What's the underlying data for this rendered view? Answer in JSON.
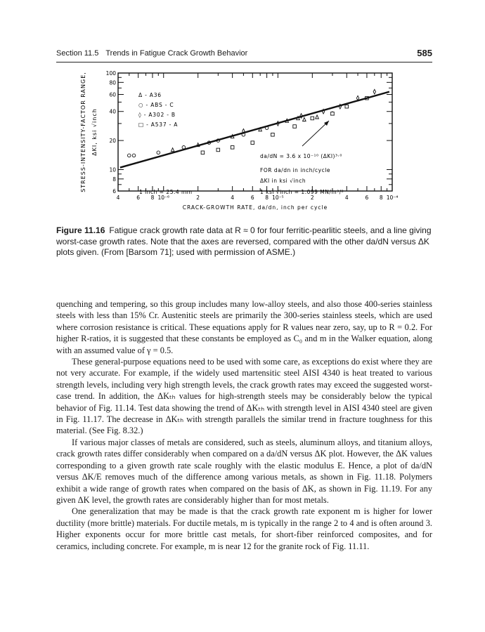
{
  "header": {
    "section": "Section 11.5",
    "title": "Trends in Fatigue Crack Growth Behavior",
    "page_number": "585"
  },
  "figure": {
    "label": "Figure 11.16",
    "caption": "Fatigue crack growth rate data at R ≈ 0 for four ferritic-pearlitic steels, and a line giving worst-case growth rates. Note that the axes are reversed, compared with the other da/dN versus ΔK plots given. (From [Barsom 71]; used with permission of ASME.)"
  },
  "chart_data": {
    "type": "scatter",
    "xlabel": "CRACK-GROWTH RATE, da/dn, inch per cycle",
    "ylabel_line1": "STRESS-INTENSITY-FACTOR RANGE,",
    "ylabel_line2": "ΔKI, ksi √inch",
    "x_scale": "log",
    "y_scale": "log",
    "xlim": [
      4e-07,
      0.0001
    ],
    "ylim": [
      6,
      100
    ],
    "grid": false,
    "legend_position": "top-left",
    "x_ticks": [
      {
        "value": 4e-07,
        "label": "4"
      },
      {
        "value": 6e-07,
        "label": "6"
      },
      {
        "value": 8e-07,
        "label": "8"
      },
      {
        "value": 1e-06,
        "label": "10⁻⁶"
      },
      {
        "value": 2e-06,
        "label": "2"
      },
      {
        "value": 4e-06,
        "label": "4"
      },
      {
        "value": 6e-06,
        "label": "6"
      },
      {
        "value": 8e-06,
        "label": "8"
      },
      {
        "value": 1e-05,
        "label": "10⁻⁵"
      },
      {
        "value": 2e-05,
        "label": "2"
      },
      {
        "value": 4e-05,
        "label": "4"
      },
      {
        "value": 6e-05,
        "label": "6"
      },
      {
        "value": 8e-05,
        "label": "8"
      },
      {
        "value": 0.0001,
        "label": "10⁻⁴"
      }
    ],
    "y_ticks": [
      {
        "value": 100,
        "label": "100"
      },
      {
        "value": 80,
        "label": "80"
      },
      {
        "value": 60,
        "label": "60"
      },
      {
        "value": 40,
        "label": "40"
      },
      {
        "value": 20,
        "label": "20"
      },
      {
        "value": 10,
        "label": "10"
      },
      {
        "value": 8,
        "label": "8"
      },
      {
        "value": 6,
        "label": "6"
      }
    ],
    "series": [
      {
        "name": "A36",
        "marker": "triangle",
        "x": [
          1.2e-06,
          2e-06,
          4e-06,
          7e-06,
          1.2e-05,
          1.5e-05,
          1.7e-05,
          2.2e-05,
          3e-05
        ],
        "y": [
          16,
          18,
          22,
          26,
          32,
          34,
          33,
          35,
          38
        ]
      },
      {
        "name": "ABS-C",
        "marker": "circle",
        "x": [
          5e-07,
          5.5e-07,
          9e-07,
          1.5e-06,
          2.5e-06,
          3e-06,
          5e-06,
          8e-06
        ],
        "y": [
          14,
          14,
          15,
          17,
          19,
          20,
          23,
          27
        ]
      },
      {
        "name": "A302-B",
        "marker": "diamond",
        "x": [
          5e-06,
          1e-05,
          1.6e-05,
          2.5e-05,
          3.5e-05,
          5e-05,
          7e-05
        ],
        "y": [
          25,
          30,
          36,
          40,
          45,
          55,
          64
        ]
      },
      {
        "name": "A537-A",
        "marker": "square",
        "x": [
          2.2e-06,
          3e-06,
          4e-06,
          6e-06,
          9e-06,
          1.4e-05,
          2e-05,
          3e-05,
          4e-05,
          6e-05
        ],
        "y": [
          15,
          16,
          17,
          19,
          23,
          28,
          34,
          38,
          45,
          55
        ]
      }
    ],
    "worst_case_line": {
      "coefficient": 3.6e-10,
      "exponent": 3.0,
      "y_range": [
        10.5,
        64
      ]
    },
    "legend": [
      "Δ - A36",
      "○ - ABS - C",
      "◊ - A302 - B",
      "□ - A537 - A"
    ],
    "annotations": {
      "equation": "da/dN = 3.6 x 10⁻¹⁰ (ΔKI)³·⁰",
      "units1": "FOR da/dn in inch/cycle",
      "units2": "ΔKI in ksi √inch",
      "conversion": "1 ksi √inch = 1.099 MN/m³/²",
      "inch": "1 inch = 25.4 mm"
    }
  },
  "body": {
    "paragraphs": [
      "quenching and tempering, so this group includes many low-alloy steels, and also those 400-series stainless steels with less than 15% Cr. Austenitic steels are primarily the 300-series stainless steels, which are used where corrosion resistance is critical. These equations apply for R values near zero, say, up to R = 0.2. For higher R-ratios, it is suggested that these constants be employed as C₀ and m in the Walker equation, along with an assumed value of γ = 0.5.",
      "These general-purpose equations need to be used with some care, as exceptions do exist where they are not very accurate. For example, if the widely used martensitic steel AISI 4340 is heat treated to various strength levels, including very high strength levels, the crack growth rates may exceed the suggested worst-case trend. In addition, the ΔKₜₕ values for high-strength steels may be considerably below the typical behavior of Fig. 11.14. Test data showing the trend of ΔKₜₕ with strength level in AISI 4340 steel are given in Fig. 11.17. The decrease in ΔKₜₕ with strength parallels the similar trend in fracture toughness for this material. (See Fig. 8.32.)",
      "If various major classes of metals are considered, such as steels, aluminum alloys, and titanium alloys, crack growth rates differ considerably when compared on a da/dN versus ΔK plot. However, the ΔK values corresponding to a given growth rate scale roughly with the elastic modulus E. Hence, a plot of da/dN versus ΔK/E removes much of the difference among various metals, as shown in Fig. 11.18. Polymers exhibit a wide range of growth rates when compared on the basis of ΔK, as shown in Fig. 11.19. For any given ΔK level, the growth rates are considerably higher than for most metals.",
      "One generalization that may be made is that the crack growth rate exponent m is higher for lower ductility (more brittle) materials. For ductile metals, m is typically in the range 2 to 4 and is often around 3. Higher exponents occur for more brittle cast metals, for short-fiber reinforced composites, and for ceramics, including concrete. For example, m is near 12 for the granite rock of Fig. 11.11."
    ]
  }
}
